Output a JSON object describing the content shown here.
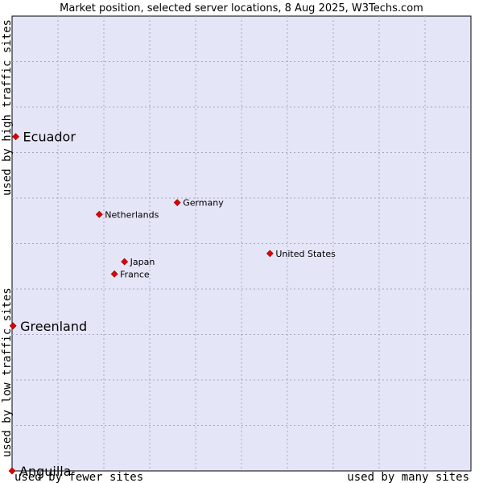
{
  "chart_data": {
    "type": "scatter",
    "title": "Market position, selected server locations, 8 Aug 2025, W3Techs.com",
    "xlabel_left": "used by fewer sites",
    "xlabel_right": "used by many sites",
    "ylabel_bottom": "used by low traffic sites",
    "ylabel_top": "used by high traffic sites",
    "xlim": [
      0,
      10
    ],
    "ylim": [
      0,
      10
    ],
    "grid": true,
    "colors": {
      "plot_background": "#e5e5f8",
      "border": "#000000",
      "grid": "#a6a6c0",
      "marker": "#e00000",
      "marker_edge": "#8a0000"
    },
    "points": [
      {
        "label": "Ecuador",
        "x": 0.08,
        "y": 7.35,
        "emphasis": true
      },
      {
        "label": "Germany",
        "x": 3.6,
        "y": 5.9,
        "emphasis": false
      },
      {
        "label": "Netherlands",
        "x": 1.9,
        "y": 5.64,
        "emphasis": false
      },
      {
        "label": "United States",
        "x": 5.62,
        "y": 4.78,
        "emphasis": false
      },
      {
        "label": "Japan",
        "x": 2.45,
        "y": 4.6,
        "emphasis": false
      },
      {
        "label": "France",
        "x": 2.23,
        "y": 4.33,
        "emphasis": false
      },
      {
        "label": "Greenland",
        "x": 0.02,
        "y": 3.19,
        "emphasis": true
      },
      {
        "label": "Anguilla",
        "x": 0.0,
        "y": 0.0,
        "emphasis": true
      }
    ]
  }
}
